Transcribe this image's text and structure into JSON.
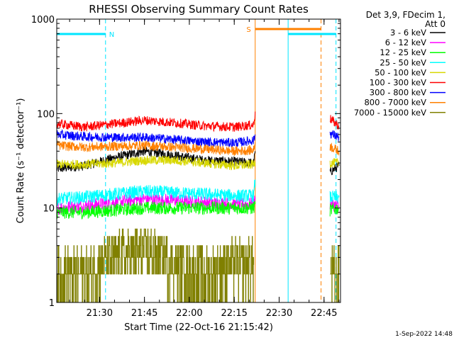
{
  "chart_data": {
    "type": "line",
    "title": "RHESSI Observing Summary Count Rates",
    "xlabel": "Start Time (22-Oct-16 21:15:42)",
    "ylabel": "Count Rate (s⁻¹ detector⁻¹)",
    "y_scale": "log",
    "ylim": [
      1,
      1000
    ],
    "y_ticks": [
      {
        "value": 1,
        "label": "1"
      },
      {
        "value": 10,
        "label": "10"
      },
      {
        "value": 100,
        "label": "100"
      },
      {
        "value": 1000,
        "label": "1000"
      }
    ],
    "xlim": [
      "21:15:42",
      "22:50:30"
    ],
    "x_ticks": [
      {
        "value": "21:30",
        "label": "21:30"
      },
      {
        "value": "21:45",
        "label": "21:45"
      },
      {
        "value": "22:00",
        "label": "22:00"
      },
      {
        "value": "22:15",
        "label": "22:15"
      },
      {
        "value": "22:30",
        "label": "22:30"
      },
      {
        "value": "22:45",
        "label": "22:45"
      }
    ],
    "legend_position": "right",
    "legend_header": [
      "Det 3,9, FDecim 1,",
      "Att 0"
    ],
    "footer_date": "1-Sep-2022 14:48",
    "data_gap": [
      "22:22:00",
      "22:47:00"
    ],
    "flags": [
      {
        "label": "N",
        "color": "#00e5ff",
        "start": "21:15:42",
        "end": "21:32:00",
        "row": 1
      },
      {
        "label": "S",
        "color": "#ff8000",
        "start": "22:22:00",
        "end": "22:44:00",
        "row": 0
      },
      {
        "label": "",
        "color": "#00e5ff",
        "start": "22:33:00",
        "end": "22:49:00",
        "row": 1
      }
    ],
    "event_lines": [
      {
        "time": "21:15:42",
        "color": "#00e5ff",
        "style": "solid"
      },
      {
        "time": "21:32:00",
        "color": "#00e5ff",
        "style": "dashed"
      },
      {
        "time": "22:22:00",
        "color": "#ff8000",
        "style": "solid"
      },
      {
        "time": "22:33:00",
        "color": "#00e5ff",
        "style": "solid"
      },
      {
        "time": "22:44:00",
        "color": "#ff8000",
        "style": "dashed"
      },
      {
        "time": "22:49:00",
        "color": "#00e5ff",
        "style": "dashed"
      }
    ],
    "series": [
      {
        "name": "3 - 6 keV",
        "color": "#000000",
        "points": [
          [
            "21:15:42",
            26
          ],
          [
            "21:25:00",
            28
          ],
          [
            "21:35:00",
            34
          ],
          [
            "21:45:00",
            40
          ],
          [
            "21:55:00",
            36
          ],
          [
            "22:05:00",
            32
          ],
          [
            "22:15:00",
            31
          ],
          [
            "22:21:30",
            30
          ],
          [
            "22:22:00",
            40
          ]
        ],
        "post": [
          [
            "22:47:00",
            24
          ],
          [
            "22:50:00",
            28
          ]
        ]
      },
      {
        "name": "6 - 12 keV",
        "color": "#ff00ff",
        "points": [
          [
            "21:15:42",
            10
          ],
          [
            "21:25:00",
            10.5
          ],
          [
            "21:35:00",
            11.5
          ],
          [
            "21:45:00",
            12.5
          ],
          [
            "21:55:00",
            12
          ],
          [
            "22:05:00",
            11.5
          ],
          [
            "22:15:00",
            11
          ],
          [
            "22:21:30",
            11
          ],
          [
            "22:22:00",
            13
          ]
        ],
        "post": [
          [
            "22:47:00",
            11
          ],
          [
            "22:50:00",
            10.5
          ]
        ]
      },
      {
        "name": "12 - 25 keV",
        "color": "#00ff00",
        "points": [
          [
            "21:15:42",
            9
          ],
          [
            "21:25:00",
            9
          ],
          [
            "21:35:00",
            9.5
          ],
          [
            "21:45:00",
            10
          ],
          [
            "21:55:00",
            10
          ],
          [
            "22:05:00",
            10
          ],
          [
            "22:15:00",
            10
          ],
          [
            "22:21:30",
            10
          ],
          [
            "22:22:00",
            11
          ]
        ],
        "post": [
          [
            "22:47:00",
            9.5
          ],
          [
            "22:50:00",
            10
          ]
        ]
      },
      {
        "name": "25 - 50 keV",
        "color": "#00ffff",
        "points": [
          [
            "21:15:42",
            12.5
          ],
          [
            "21:25:00",
            13
          ],
          [
            "21:35:00",
            14
          ],
          [
            "21:45:00",
            15
          ],
          [
            "21:55:00",
            14.5
          ],
          [
            "22:05:00",
            14
          ],
          [
            "22:15:00",
            13.5
          ],
          [
            "22:21:30",
            13.5
          ],
          [
            "22:22:00",
            20
          ]
        ],
        "post": [
          [
            "22:47:00",
            13
          ],
          [
            "22:50:00",
            13
          ]
        ]
      },
      {
        "name": "50 - 100 keV",
        "color": "#d8d800",
        "points": [
          [
            "21:15:42",
            29
          ],
          [
            "21:25:00",
            29
          ],
          [
            "21:35:00",
            30
          ],
          [
            "21:45:00",
            32
          ],
          [
            "21:55:00",
            32
          ],
          [
            "22:05:00",
            30
          ],
          [
            "22:15:00",
            28
          ],
          [
            "22:21:30",
            29
          ],
          [
            "22:22:00",
            31
          ]
        ],
        "post": [
          [
            "22:47:00",
            30
          ],
          [
            "22:50:00",
            30
          ]
        ]
      },
      {
        "name": "100 - 300 keV",
        "color": "#ff0000",
        "points": [
          [
            "21:15:42",
            78
          ],
          [
            "21:25:00",
            72
          ],
          [
            "21:35:00",
            78
          ],
          [
            "21:45:00",
            85
          ],
          [
            "21:55:00",
            80
          ],
          [
            "22:05:00",
            74
          ],
          [
            "22:15:00",
            72
          ],
          [
            "22:21:30",
            76
          ],
          [
            "22:22:00",
            105
          ]
        ],
        "post": [
          [
            "22:47:00",
            88
          ],
          [
            "22:50:00",
            74
          ]
        ]
      },
      {
        "name": "300 - 800 keV",
        "color": "#0000ff",
        "points": [
          [
            "21:15:42",
            60
          ],
          [
            "21:25:00",
            57
          ],
          [
            "21:35:00",
            56
          ],
          [
            "21:45:00",
            56
          ],
          [
            "21:55:00",
            53
          ],
          [
            "22:05:00",
            50
          ],
          [
            "22:15:00",
            49
          ],
          [
            "22:21:30",
            52
          ],
          [
            "22:22:00",
            60
          ]
        ],
        "post": [
          [
            "22:47:00",
            62
          ],
          [
            "22:50:00",
            56
          ]
        ]
      },
      {
        "name": "800 - 7000 keV",
        "color": "#ff8000",
        "points": [
          [
            "21:15:42",
            46
          ],
          [
            "21:25:00",
            44
          ],
          [
            "21:35:00",
            45
          ],
          [
            "21:45:00",
            46
          ],
          [
            "21:55:00",
            44
          ],
          [
            "22:05:00",
            42
          ],
          [
            "22:15:00",
            40
          ],
          [
            "22:21:30",
            41
          ],
          [
            "22:22:00",
            50
          ]
        ],
        "post": [
          [
            "22:47:00",
            45
          ],
          [
            "22:50:00",
            40
          ]
        ]
      },
      {
        "name": "7000 - 15000 keV",
        "color": "#808000",
        "points": [
          [
            "21:15:42",
            2
          ],
          [
            "21:25:00",
            2
          ],
          [
            "21:35:00",
            3
          ],
          [
            "21:45:00",
            3.5
          ],
          [
            "21:55:00",
            2.5
          ],
          [
            "22:05:00",
            2
          ],
          [
            "22:15:00",
            2.5
          ],
          [
            "22:21:30",
            2.5
          ]
        ],
        "post": [
          [
            "22:47:00",
            2
          ],
          [
            "22:50:00",
            2
          ]
        ]
      }
    ]
  }
}
